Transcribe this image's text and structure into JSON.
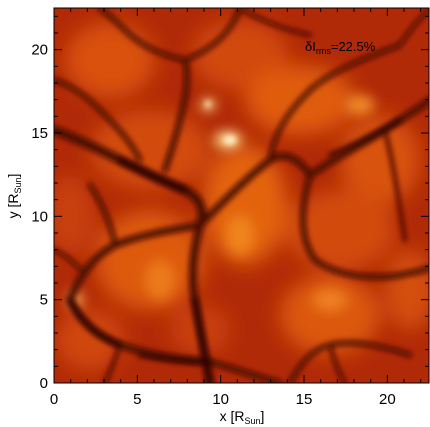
{
  "figure": {
    "annotation": {
      "prefix": "δI",
      "sub": "rms",
      "suffix": "=22.5%"
    },
    "x_axis": {
      "label_prefix": "x [R",
      "label_sub": "Sun",
      "label_suffix": "]",
      "ticks": [
        {
          "value": 0,
          "label": "0"
        },
        {
          "value": 5,
          "label": "5"
        },
        {
          "value": 10,
          "label": "10"
        },
        {
          "value": 15,
          "label": "15"
        },
        {
          "value": 20,
          "label": "20"
        }
      ],
      "range": [
        0,
        22.5
      ]
    },
    "y_axis": {
      "label_prefix": "y [R",
      "label_sub": "Sun",
      "label_suffix": "]",
      "ticks": [
        {
          "value": 0,
          "label": "0"
        },
        {
          "value": 5,
          "label": "5"
        },
        {
          "value": 10,
          "label": "10"
        },
        {
          "value": 15,
          "label": "15"
        },
        {
          "value": 20,
          "label": "20"
        }
      ],
      "range": [
        0,
        22.5
      ]
    },
    "colors": {
      "dark_lane": "#4a0804",
      "mid": "#b82a06",
      "bright": "#e2620e",
      "highlight": "#fff0c0"
    }
  }
}
